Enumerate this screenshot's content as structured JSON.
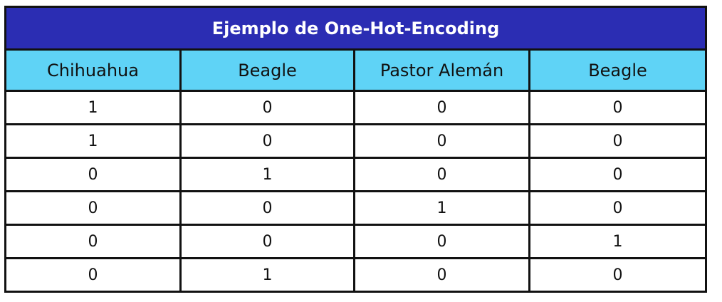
{
  "table": {
    "title": "Ejemplo de One-Hot-Encoding",
    "headers": [
      "Chihuahua",
      "Beagle",
      "Pastor Alemán",
      "Beagle"
    ],
    "rows": [
      [
        "1",
        "0",
        "0",
        "0"
      ],
      [
        "1",
        "0",
        "0",
        "0"
      ],
      [
        "0",
        "1",
        "0",
        "0"
      ],
      [
        "0",
        "0",
        "1",
        "0"
      ],
      [
        "0",
        "0",
        "0",
        "1"
      ],
      [
        "0",
        "1",
        "0",
        "0"
      ]
    ],
    "colors": {
      "title_bg": "#2b2db3",
      "header_bg": "#5fd3f6",
      "border": "#111111"
    }
  }
}
